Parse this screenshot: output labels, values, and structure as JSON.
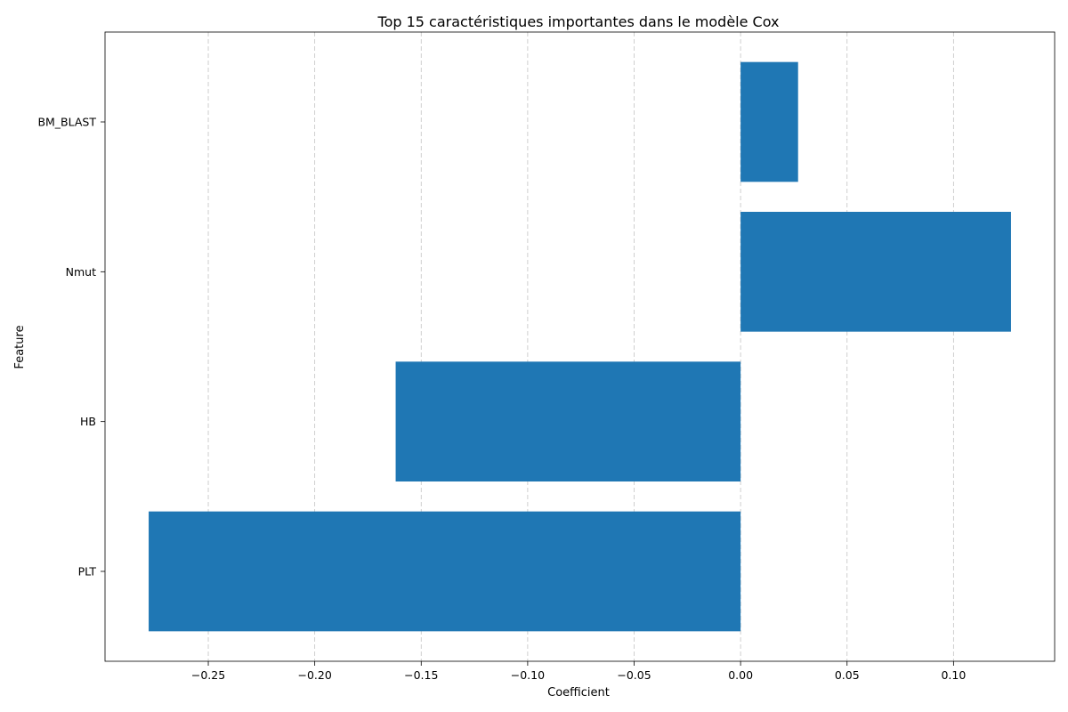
{
  "chart_data": {
    "type": "bar",
    "orientation": "horizontal",
    "title": "Top 15 caractéristiques importantes dans le modèle Cox",
    "xlabel": "Coefficient",
    "ylabel": "Feature",
    "categories": [
      "BM_BLAST",
      "Nmut",
      "HB",
      "PLT"
    ],
    "values": [
      0.027,
      0.127,
      -0.162,
      -0.278
    ],
    "xlim": [
      -0.2985,
      0.1475
    ],
    "xticks": [
      -0.25,
      -0.2,
      -0.15,
      -0.1,
      -0.05,
      0.0,
      0.05,
      0.1
    ],
    "xtick_labels": [
      "−0.25",
      "−0.20",
      "−0.15",
      "−0.10",
      "−0.05",
      "0.00",
      "0.05",
      "0.10"
    ],
    "grid": "x-dashed",
    "bar_color": "#1f77b4"
  }
}
